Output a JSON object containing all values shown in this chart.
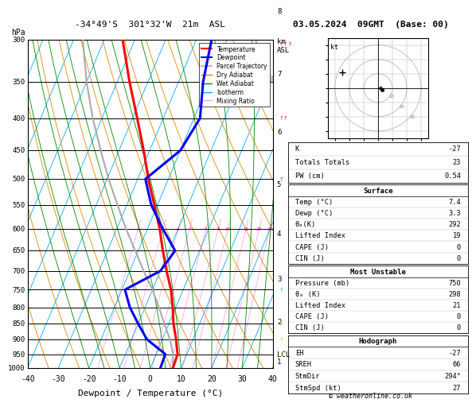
{
  "title_left": "-34°49'S  301°32'W  21m  ASL",
  "title_right": "03.05.2024  09GMT  (Base: 00)",
  "xlabel": "Dewpoint / Temperature (°C)",
  "ylim_log": [
    300,
    1000
  ],
  "xlim": [
    -40,
    40
  ],
  "pressure_levels": [
    300,
    350,
    400,
    450,
    500,
    550,
    600,
    650,
    700,
    750,
    800,
    850,
    900,
    950,
    1000
  ],
  "mixing_ratio_labels": [
    1,
    2,
    3,
    4,
    6,
    8,
    10,
    15,
    20,
    25
  ],
  "km_labels": [
    1,
    2,
    3,
    4,
    5,
    6,
    7,
    8
  ],
  "km_pressures": [
    975,
    845,
    720,
    610,
    510,
    420,
    340,
    270
  ],
  "lcl_pressure": 950,
  "temp_profile": {
    "pressure": [
      1000,
      950,
      900,
      850,
      800,
      750,
      700,
      650,
      600,
      550,
      500,
      450,
      400,
      350,
      300
    ],
    "temperature": [
      7.4,
      7.0,
      4.5,
      1.5,
      -1.0,
      -4.0,
      -8.0,
      -12.0,
      -16.0,
      -21.0,
      -26.5,
      -32.0,
      -38.5,
      -46.0,
      -54.0
    ]
  },
  "dewp_profile": {
    "pressure": [
      1000,
      950,
      900,
      850,
      800,
      750,
      700,
      650,
      600,
      550,
      500,
      450,
      400,
      350,
      300
    ],
    "dewpoint": [
      3.3,
      3.0,
      -5.0,
      -10.0,
      -15.0,
      -19.0,
      -10.0,
      -8.0,
      -15.0,
      -22.0,
      -27.5,
      -20.0,
      -18.0,
      -22.0,
      -25.0
    ]
  },
  "parcel_profile": {
    "pressure": [
      1000,
      950,
      900,
      850,
      800,
      750,
      700,
      650,
      600,
      550,
      500,
      450,
      400,
      350,
      300
    ],
    "temperature": [
      7.4,
      5.5,
      2.5,
      -1.5,
      -5.5,
      -10.0,
      -15.5,
      -21.0,
      -27.0,
      -33.0,
      -39.5,
      -46.0,
      -53.0,
      -60.0,
      -67.0
    ]
  },
  "table_data": {
    "K": "-27",
    "Totals Totals": "23",
    "PW (cm)": "0.54",
    "surface_temp": "7.4",
    "surface_dewp": "3.3",
    "theta_e": "292",
    "lifted_index": "19",
    "cape": "0",
    "cin": "0",
    "mu_pressure": "750",
    "mu_theta_e": "298",
    "mu_lifted_index": "21",
    "mu_cape": "0",
    "mu_cin": "0",
    "EH": "-27",
    "SREH": "66",
    "StmDir": "294°",
    "StmSpd": "27"
  },
  "colors": {
    "temperature": "#ff0000",
    "dewpoint": "#0000ff",
    "parcel": "#aaaaaa",
    "dry_adiabat": "#dd8800",
    "wet_adiabat": "#008800",
    "isotherm": "#00aaff",
    "mixing_ratio": "#ff00bb",
    "background": "#ffffff",
    "grid": "#000000"
  },
  "hodograph_circles": [
    10,
    20,
    30
  ],
  "skew": 45,
  "footer": "© weatheronline.co.uk"
}
